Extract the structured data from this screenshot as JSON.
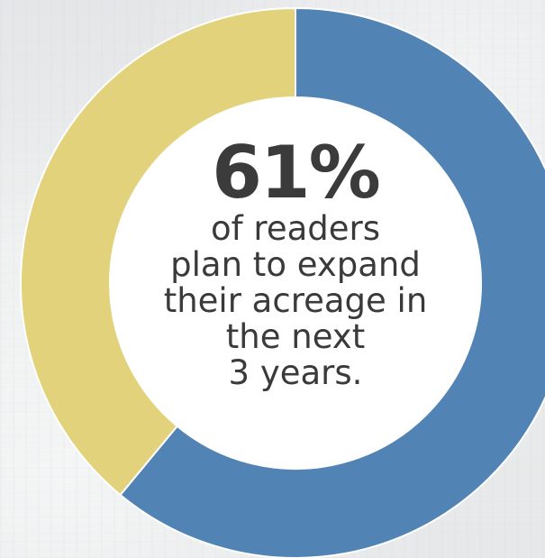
{
  "chart_data": {
    "type": "pie",
    "variant": "donut",
    "slices": [
      {
        "value": 61,
        "color": "#5184b5"
      },
      {
        "value": 39,
        "color": "#e2d27c"
      }
    ]
  },
  "headline": {
    "value": "61%",
    "caption": "of readers\nplan to expand\ntheir acreage in\nthe next\n3 years."
  },
  "colors": {
    "accent_blue": "#5184b5",
    "accent_yellow": "#e2d27c",
    "center_fill": "#ffffff",
    "text": "#3a3a3a"
  }
}
